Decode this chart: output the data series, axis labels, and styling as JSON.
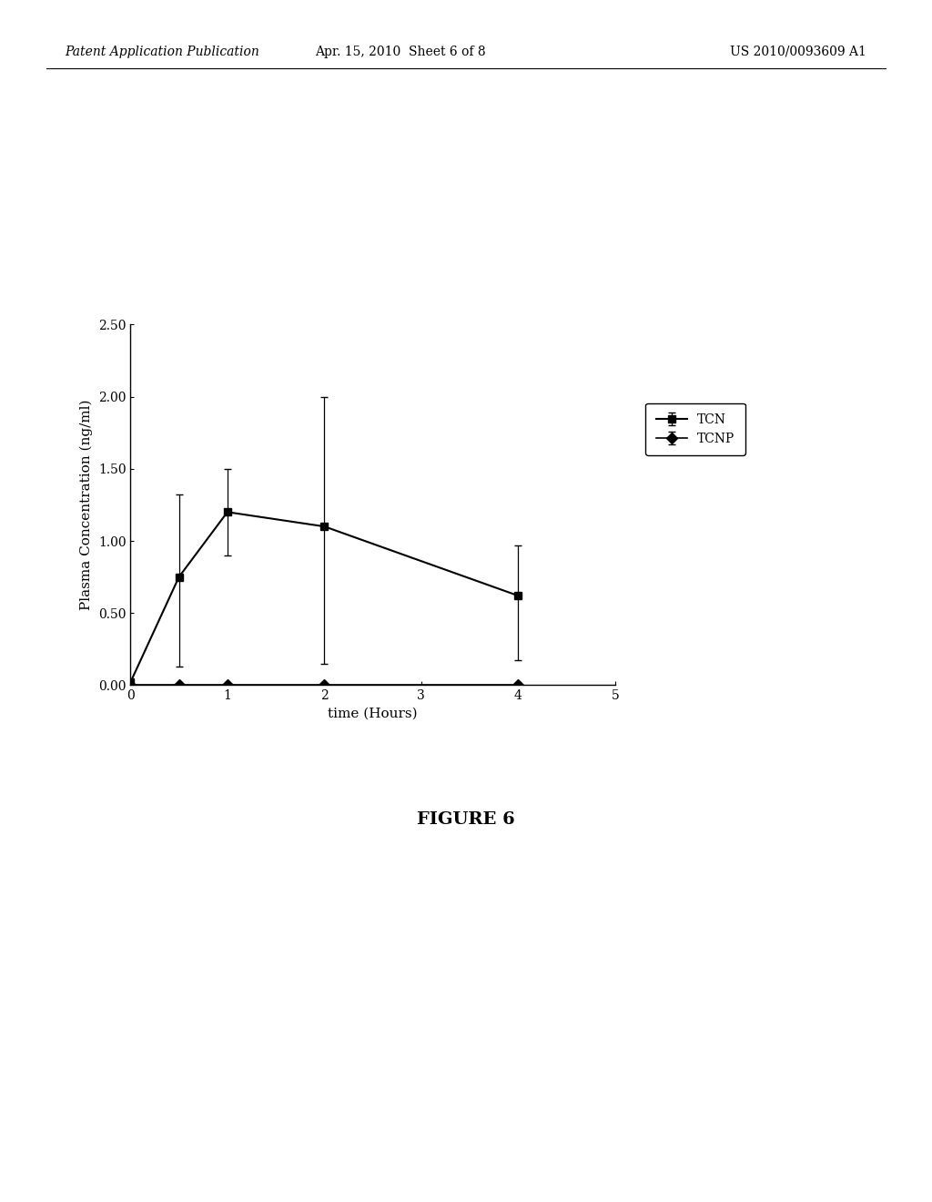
{
  "tcn_x": [
    0,
    0.5,
    1,
    2,
    4
  ],
  "tcn_y": [
    0.02,
    0.75,
    1.2,
    1.1,
    0.62
  ],
  "tcn_yerr_upper": [
    0.0,
    0.57,
    0.3,
    0.9,
    0.35
  ],
  "tcn_yerr_lower": [
    0.0,
    0.62,
    0.3,
    0.95,
    0.45
  ],
  "tcnp_x": [
    0,
    0.5,
    1,
    2,
    4
  ],
  "tcnp_y": [
    0.0,
    0.0,
    0.0,
    0.0,
    0.0
  ],
  "tcnp_yerr_upper": [
    0.0,
    0.0,
    0.0,
    0.0,
    0.0
  ],
  "tcnp_yerr_lower": [
    0.0,
    0.0,
    0.0,
    0.0,
    0.0
  ],
  "xlabel": "time (Hours)",
  "ylabel": "Plasma Concentration (ng/ml)",
  "xlim": [
    0,
    5
  ],
  "ylim": [
    0.0,
    2.5
  ],
  "yticks": [
    0.0,
    0.5,
    1.0,
    1.5,
    2.0,
    2.5
  ],
  "xticks": [
    0,
    1,
    2,
    3,
    4,
    5
  ],
  "figure_title": "FIGURE 6",
  "header_left": "Patent Application Publication",
  "header_center": "Apr. 15, 2010  Sheet 6 of 8",
  "header_right": "US 2010/0093609 A1",
  "legend_labels": [
    "TCN",
    "TCNP"
  ],
  "line_color": "#000000",
  "background_color": "#ffffff",
  "font_size_axis_label": 11,
  "font_size_ticks": 10,
  "font_size_title": 14,
  "font_size_header": 10
}
